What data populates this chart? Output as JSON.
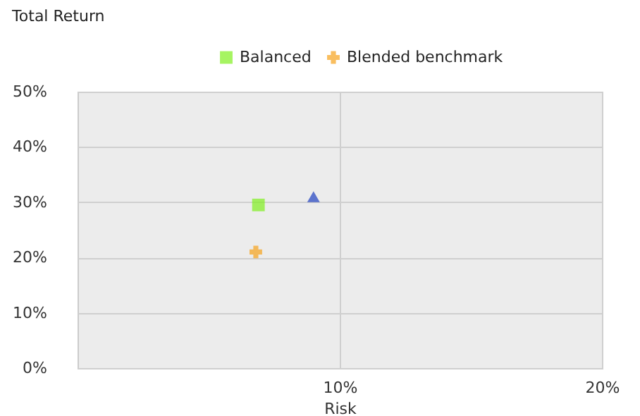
{
  "chart_data": {
    "type": "scatter",
    "ylabel": "Total Return",
    "xlabel": "Risk",
    "series": [
      {
        "name": "Balanced",
        "color": "#80f020",
        "marker": "square",
        "x": [
          6.9
        ],
        "values": [
          29.5
        ]
      },
      {
        "color": "#2040c0",
        "marker": "triangle",
        "x": [
          9.0
        ],
        "values": [
          31
        ]
      },
      {
        "name": "Blended benchmark",
        "color": "#f7a21b",
        "marker": "cross",
        "x": [
          6.8
        ],
        "values": [
          21
        ]
      }
    ],
    "xlim": [
      0,
      20
    ],
    "xticks": [
      {
        "value": 10,
        "label": "10%"
      },
      {
        "value": 20,
        "label": "20%"
      }
    ],
    "ylim": [
      0,
      50
    ],
    "yticks": [
      {
        "value": 0,
        "label": "0%"
      },
      {
        "value": 10,
        "label": "10%"
      },
      {
        "value": 20,
        "label": "20%"
      },
      {
        "value": 30,
        "label": "30%"
      },
      {
        "value": 40,
        "label": "40%"
      },
      {
        "value": 50,
        "label": "50%"
      }
    ],
    "grid": true,
    "legend": "top"
  }
}
